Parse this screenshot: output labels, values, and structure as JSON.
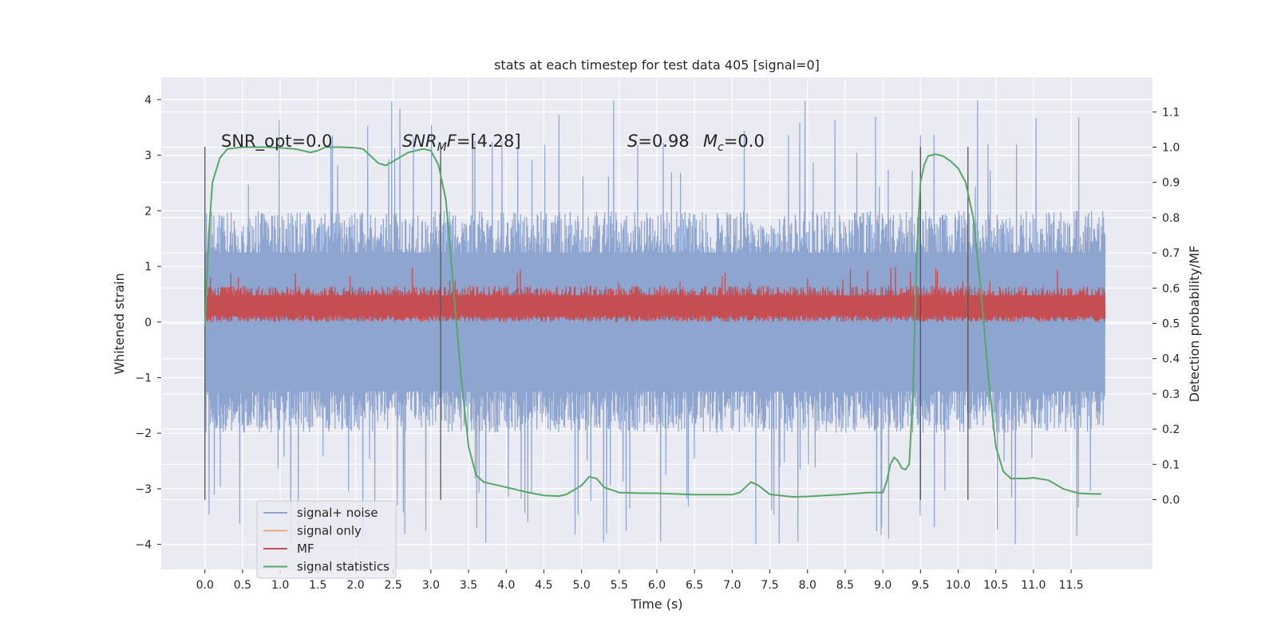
{
  "chart_data": {
    "type": "line",
    "title": "stats at each timestep for test data 405 [signal=0]",
    "xlabel": "Time (s)",
    "ylabel": "Whitened strain",
    "y2label": "Detection probability/MF",
    "xlim": [
      -0.58,
      12.58
    ],
    "ylim": [
      -4.45,
      4.4
    ],
    "y2lim": [
      -0.198,
      1.198
    ],
    "xticks": [
      0.0,
      0.5,
      1.0,
      1.5,
      2.0,
      2.5,
      3.0,
      3.5,
      4.0,
      4.5,
      5.0,
      5.5,
      6.0,
      6.5,
      7.0,
      7.5,
      8.0,
      8.5,
      9.0,
      9.5,
      10.0,
      10.5,
      11.0,
      11.5
    ],
    "xtick_labels": [
      "0.0",
      "0.5",
      "1.0",
      "1.5",
      "2.0",
      "2.5",
      "3.0",
      "3.5",
      "4.0",
      "4.5",
      "5.0",
      "5.5",
      "6.0",
      "6.5",
      "7.0",
      "7.5",
      "8.0",
      "8.5",
      "9.0",
      "9.5",
      "10.0",
      "10.5",
      "11.0",
      "11.5"
    ],
    "yticks": [
      -4,
      -3,
      -2,
      -1,
      0,
      1,
      2,
      3,
      4
    ],
    "ytick_labels": [
      "−4",
      "−3",
      "−2",
      "−1",
      "0",
      "1",
      "2",
      "3",
      "4"
    ],
    "y2ticks": [
      0.0,
      0.1,
      0.2,
      0.3,
      0.4,
      0.5,
      0.6,
      0.7,
      0.8,
      0.9,
      1.0,
      1.1
    ],
    "y2tick_labels": [
      "0.0",
      "0.1",
      "0.2",
      "0.3",
      "0.4",
      "0.5",
      "0.6",
      "0.7",
      "0.8",
      "0.9",
      "1.0",
      "1.1"
    ],
    "grid": true,
    "legend_placement": "lower-left",
    "legend": [
      {
        "name": "signal+ noise",
        "color": "#8ea5d0"
      },
      {
        "name": "signal only",
        "color": "#e8a88a"
      },
      {
        "name": "MF",
        "color": "#c44e52"
      },
      {
        "name": "signal statistics",
        "color": "#55a868"
      }
    ],
    "annotations": {
      "snr_opt": "SNR_opt=0.0",
      "snr_mf_math": "SNR",
      "snr_mf_sub": "M",
      "snr_mf_math2": "F",
      "snr_mf_rest": "=[4.28]",
      "s_math": "S",
      "s_rest": "=0.98",
      "mc_math": "M",
      "mc_sub": "c",
      "mc_rest": "=0.0"
    },
    "series": [
      {
        "name": "signal+ noise",
        "axis": "left",
        "color": "#8ea5d0",
        "x_range": [
          0.0,
          11.95
        ],
        "envelope": {
          "typical_abs": 2.0,
          "max": 4.0,
          "min": -4.1
        },
        "description_values": "dense noise samples between about -2 and 2 with spikes to ±4"
      },
      {
        "name": "MF",
        "axis": "left",
        "color": "#c44e52",
        "x_range": [
          0.0,
          11.95
        ],
        "envelope": {
          "low": 0.0,
          "typical_high": 0.65,
          "max": 1.0
        }
      },
      {
        "name": "signal statistics",
        "axis": "right",
        "color": "#55a868",
        "x": [
          0.0,
          0.05,
          0.1,
          0.2,
          0.3,
          0.5,
          0.8,
          1.0,
          1.2,
          1.4,
          1.5,
          1.6,
          1.8,
          2.0,
          2.1,
          2.2,
          2.3,
          2.4,
          2.5,
          2.7,
          2.9,
          3.0,
          3.1,
          3.2,
          3.3,
          3.4,
          3.5,
          3.6,
          3.7,
          3.9,
          4.1,
          4.3,
          4.5,
          4.7,
          4.8,
          5.0,
          5.1,
          5.2,
          5.3,
          5.5,
          5.8,
          6.0,
          6.5,
          7.0,
          7.1,
          7.2,
          7.25,
          7.35,
          7.5,
          7.8,
          8.0,
          8.5,
          8.8,
          9.0,
          9.05,
          9.1,
          9.15,
          9.2,
          9.25,
          9.3,
          9.35,
          9.4,
          9.45,
          9.5,
          9.55,
          9.6,
          9.7,
          9.8,
          9.9,
          10.0,
          10.1,
          10.2,
          10.3,
          10.4,
          10.5,
          10.6,
          10.7,
          10.8,
          10.9,
          11.0,
          11.2,
          11.4,
          11.6,
          11.8,
          11.9
        ],
        "y": [
          0.49,
          0.75,
          0.9,
          0.97,
          0.995,
          1.0,
          1.0,
          0.998,
          0.995,
          0.985,
          0.99,
          1.0,
          1.0,
          0.998,
          0.995,
          0.975,
          0.955,
          0.948,
          0.96,
          0.985,
          0.995,
          0.99,
          0.95,
          0.85,
          0.6,
          0.35,
          0.15,
          0.07,
          0.05,
          0.04,
          0.03,
          0.02,
          0.012,
          0.01,
          0.015,
          0.04,
          0.065,
          0.06,
          0.035,
          0.02,
          0.018,
          0.018,
          0.014,
          0.014,
          0.02,
          0.04,
          0.05,
          0.04,
          0.015,
          0.008,
          0.009,
          0.015,
          0.02,
          0.02,
          0.05,
          0.1,
          0.12,
          0.11,
          0.09,
          0.085,
          0.1,
          0.3,
          0.7,
          0.9,
          0.95,
          0.975,
          0.98,
          0.975,
          0.96,
          0.94,
          0.9,
          0.8,
          0.6,
          0.35,
          0.15,
          0.08,
          0.06,
          0.06,
          0.06,
          0.062,
          0.055,
          0.03,
          0.018,
          0.016,
          0.016
        ]
      }
    ],
    "vlines_x": [
      0.0,
      3.13,
      9.5,
      10.13
    ]
  }
}
